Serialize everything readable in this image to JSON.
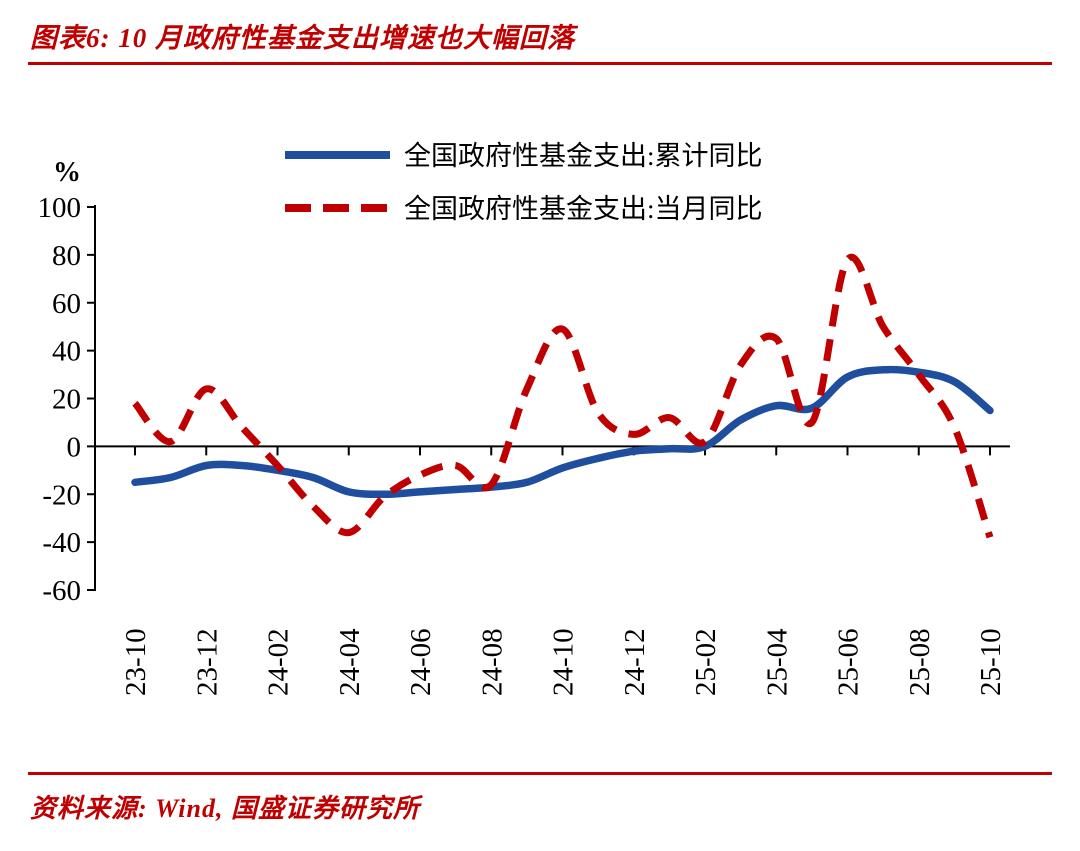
{
  "header": {
    "title": "图表6:  10 月政府性基金支出增速也大幅回落"
  },
  "footer": {
    "source": "资料来源: Wind, 国盛证券研究所"
  },
  "colors": {
    "accent_red": "#C00000",
    "axis_black": "#000000",
    "series_blue": "#1F4E9F",
    "series_red": "#C00000"
  },
  "chart_data": {
    "type": "line",
    "title": "",
    "xlabel": "",
    "ylabel": "%",
    "ylim": [
      -60,
      100
    ],
    "ytick_step": 20,
    "yticks": [
      100,
      80,
      60,
      40,
      20,
      0,
      -20,
      -40,
      -60
    ],
    "grid": false,
    "legend_position": "top",
    "x": [
      "23-10",
      "23-11",
      "23-12",
      "24-01",
      "24-02",
      "24-03",
      "24-04",
      "24-05",
      "24-06",
      "24-07",
      "24-08",
      "24-09",
      "24-10",
      "24-11",
      "24-12",
      "25-01",
      "25-02",
      "25-03",
      "25-04",
      "25-05",
      "25-06",
      "25-07",
      "25-08",
      "25-09",
      "25-10"
    ],
    "xtick_labels": [
      "23-10",
      "23-12",
      "24-02",
      "24-04",
      "24-06",
      "24-08",
      "24-10",
      "24-12",
      "25-02",
      "25-04",
      "25-06",
      "25-08",
      "25-10"
    ],
    "xtick_every": 2,
    "series": [
      {
        "name": "全国政府性基金支出:累计同比",
        "style": "solid",
        "color": "#1F4E9F",
        "values": [
          -15,
          -13,
          -8,
          -8,
          -10,
          -13,
          -19,
          -20,
          -19,
          -18,
          -17,
          -15,
          -9,
          -5,
          -2,
          -1,
          0,
          11,
          17,
          16,
          29,
          32,
          31,
          27,
          15
        ]
      },
      {
        "name": "全国政府性基金支出:当月同比",
        "style": "dashed",
        "color": "#C00000",
        "values": [
          18,
          2,
          24,
          8,
          -8,
          -25,
          -36,
          -21,
          -12,
          -8,
          -16,
          24,
          49,
          14,
          5,
          12,
          2,
          34,
          45,
          10,
          78,
          50,
          30,
          8,
          -38
        ]
      }
    ]
  }
}
